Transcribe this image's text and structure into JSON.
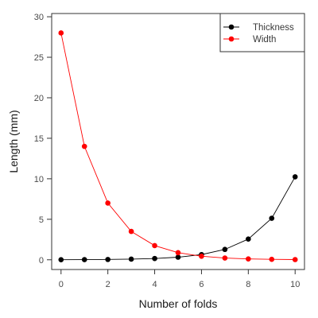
{
  "chart_data": {
    "type": "line",
    "title": "",
    "xlabel": "Number of folds",
    "ylabel": "Length (mm)",
    "xlim": [
      -0.4,
      10.4
    ],
    "ylim": [
      -1.2,
      30.4
    ],
    "x_ticks": [
      0,
      2,
      4,
      6,
      8,
      10
    ],
    "y_ticks": [
      0,
      5,
      10,
      15,
      20,
      25,
      30
    ],
    "x": [
      0,
      1,
      2,
      3,
      4,
      5,
      6,
      7,
      8,
      9,
      10
    ],
    "series": [
      {
        "name": "Thickness",
        "color": "#000000",
        "values": [
          0.01,
          0.02,
          0.04,
          0.08,
          0.16,
          0.32,
          0.64,
          1.28,
          2.56,
          5.12,
          10.24
        ]
      },
      {
        "name": "Width",
        "color": "#ff0000",
        "values": [
          28,
          14,
          7,
          3.5,
          1.75,
          0.875,
          0.4375,
          0.21875,
          0.109,
          0.055,
          0.027
        ]
      }
    ],
    "legend_position": "top-right",
    "grid": false
  }
}
